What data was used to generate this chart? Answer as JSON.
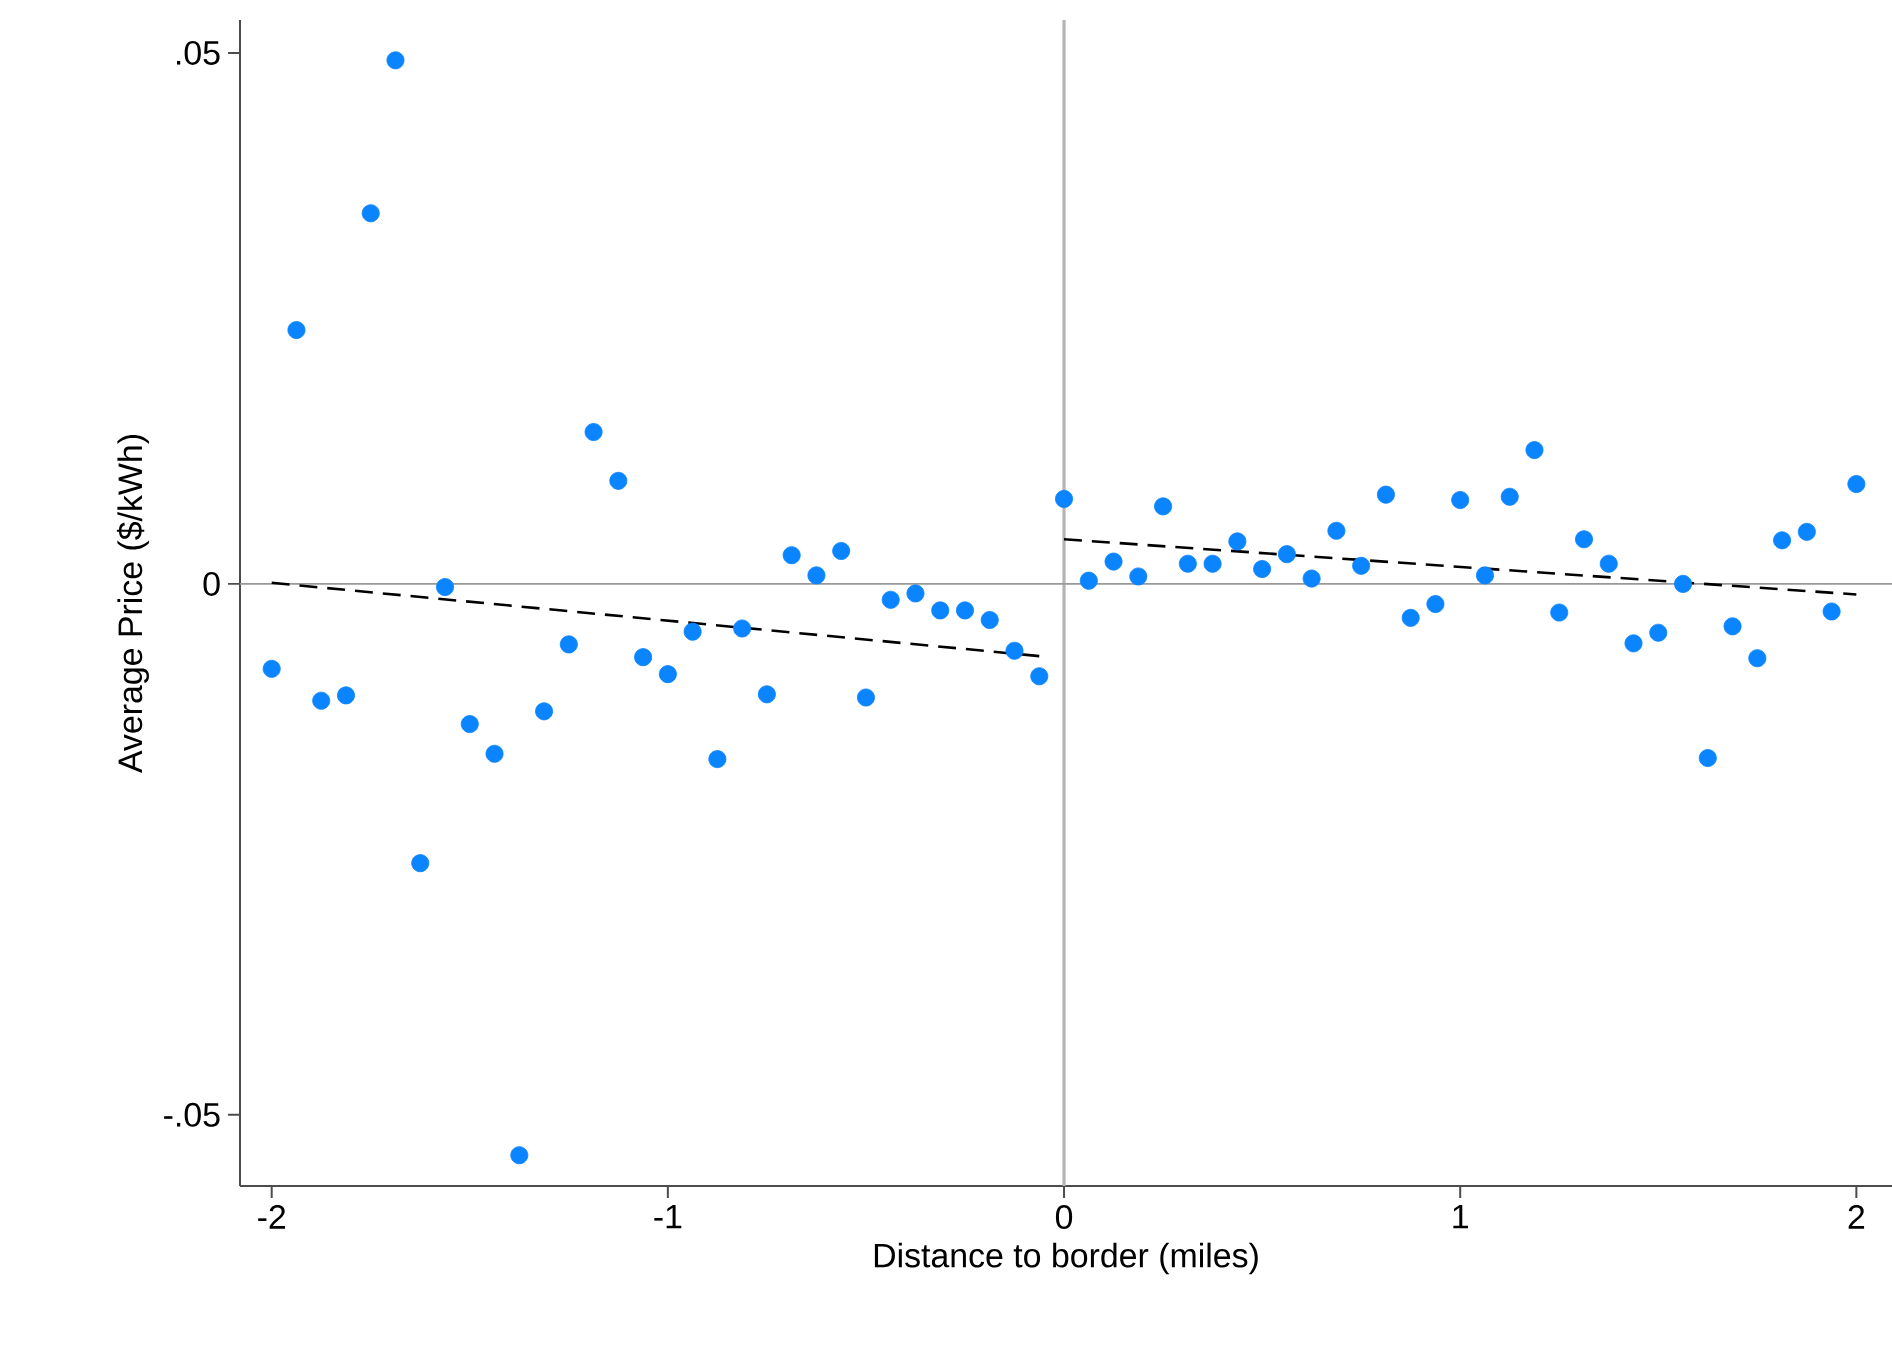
{
  "chart_data": {
    "type": "scatter",
    "xlabel": "Distance to border (miles)",
    "ylabel": "Average Price ($/kWh)",
    "xlim": [
      -2.08,
      2.09
    ],
    "ylim": [
      -0.0567,
      0.0531
    ],
    "xticks": [
      -2,
      -1,
      0,
      1,
      2
    ],
    "yticks": [
      {
        "value": -0.05,
        "label": "-.05"
      },
      0,
      {
        "value": 0.05,
        "label": ".05"
      }
    ],
    "marker": "circle",
    "grid": false,
    "ref_lines": [
      {
        "axis": "x",
        "value": 0,
        "color": "#b4b4b4"
      },
      {
        "axis": "y",
        "value": 0,
        "color": "#999999"
      }
    ],
    "series": [
      {
        "color": "#0a84ff",
        "x": [
          -2,
          -1.9375,
          -1.875,
          -1.8125,
          -1.75,
          -1.6875,
          -1.625,
          -1.5625,
          -1.5,
          -1.4375,
          -1.375,
          -1.3125,
          -1.25,
          -1.1875,
          -1.125,
          -1.0625,
          -1,
          -0.9375,
          -0.875,
          -0.8125,
          -0.75,
          -0.6875,
          -0.625,
          -0.5625,
          -0.5,
          -0.4375,
          -0.375,
          -0.3125,
          -0.25,
          -0.1875,
          -0.125,
          -0.0625
        ],
        "values": [
          -0.008,
          0.0239,
          -0.011,
          -0.0105,
          0.0349,
          0.0493,
          -0.0263,
          -0.0003,
          -0.0132,
          -0.016,
          -0.0538,
          -0.012,
          -0.0057,
          0.0143,
          0.0097,
          -0.0069,
          -0.0085,
          -0.0045,
          -0.0165,
          -0.0042,
          -0.0104,
          0.0027,
          0.0008,
          0.0031,
          -0.0107,
          -0.0015,
          -0.0009,
          -0.0025,
          -0.0025,
          -0.0034,
          -0.0063,
          -0.0087
        ]
      },
      {
        "color": "#0a84ff",
        "x": [
          0,
          0.0625,
          0.125,
          0.1875,
          0.25,
          0.3125,
          0.375,
          0.4375,
          0.5,
          0.5625,
          0.625,
          0.6875,
          0.75,
          0.8125,
          0.875,
          0.9375,
          1,
          1.0625,
          1.125,
          1.1875,
          1.25,
          1.3125,
          1.375,
          1.4375,
          1.5,
          1.5625,
          1.625,
          1.6875,
          1.75,
          1.8125,
          1.875,
          1.9375,
          2
        ],
        "values": [
          0.008,
          0.0003,
          0.0021,
          0.0007,
          0.0073,
          0.0019,
          0.0019,
          0.004,
          0.0014,
          0.0028,
          0.0005,
          0.005,
          0.0017,
          0.0084,
          -0.0032,
          -0.0019,
          0.0079,
          0.0008,
          0.0082,
          0.0126,
          -0.0027,
          0.0042,
          0.0019,
          -0.0056,
          -0.0046,
          0,
          -0.0164,
          -0.004,
          -0.007,
          0.0041,
          0.0049,
          -0.0026,
          0.0094
        ]
      },
      {
        "type": "line",
        "color": "#000000",
        "line_style": "dashed",
        "marker": "none",
        "x": [
          -2,
          -0.0625
        ],
        "values": [
          0.0001,
          -0.0068
        ]
      },
      {
        "type": "line",
        "color": "#000000",
        "line_style": "dashed",
        "marker": "none",
        "x": [
          0,
          2
        ],
        "values": [
          0.0042,
          -0.001
        ]
      }
    ]
  }
}
